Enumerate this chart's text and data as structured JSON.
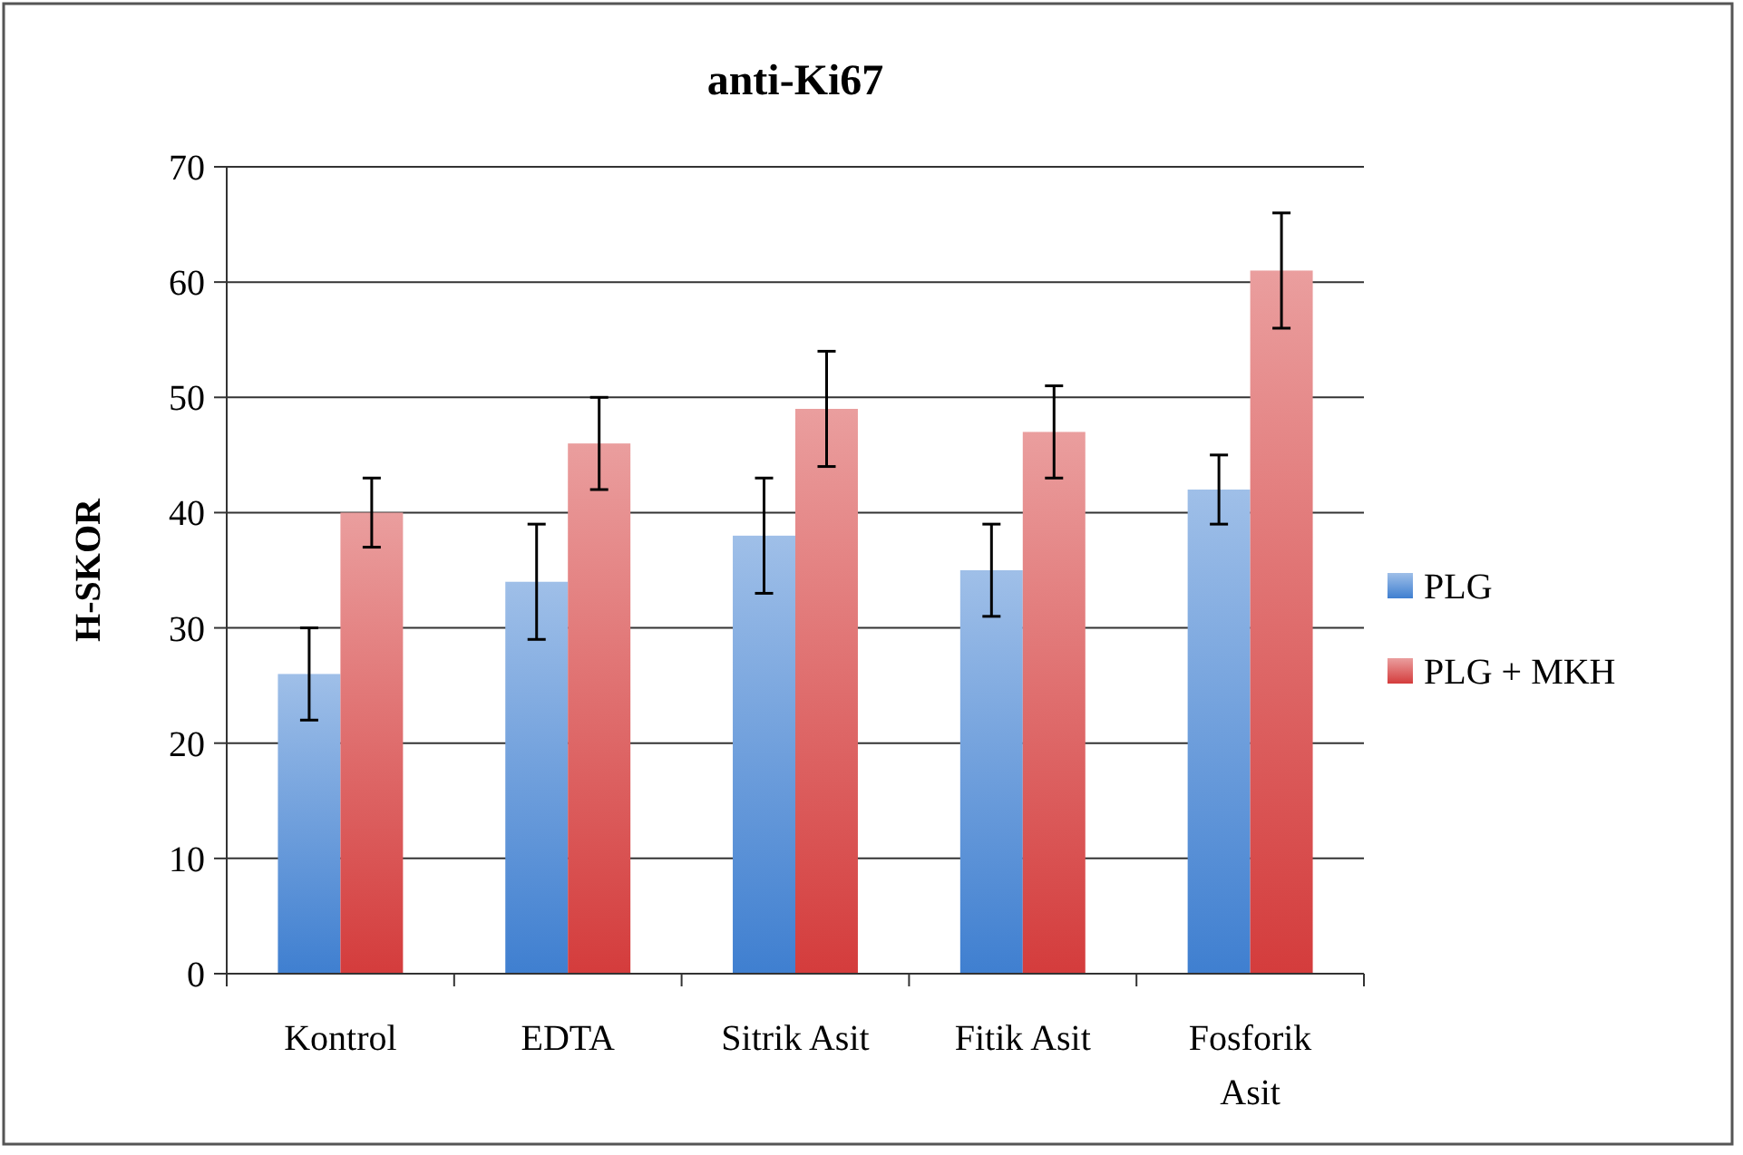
{
  "chart_data": {
    "type": "bar",
    "title": "anti-Ki67",
    "ylabel": "H-SKOR",
    "categories": [
      "Kontrol",
      "EDTA",
      "Sitrik Asit",
      "Fitik Asit",
      "Fosforik Asit"
    ],
    "series": [
      {
        "name": "PLG",
        "color": "#3f7fd0",
        "values": [
          26,
          34,
          38,
          35,
          42
        ],
        "errors": [
          4,
          5,
          5,
          4,
          3
        ]
      },
      {
        "name": "PLG + MKH",
        "color": "#d43c3c",
        "values": [
          40,
          46,
          49,
          47,
          61
        ],
        "errors": [
          3,
          4,
          5,
          4,
          5
        ]
      }
    ],
    "ylim": [
      0,
      70
    ],
    "yticks": [
      0,
      10,
      20,
      30,
      40,
      50,
      60,
      70
    ],
    "grid": "y",
    "legend": "right"
  }
}
